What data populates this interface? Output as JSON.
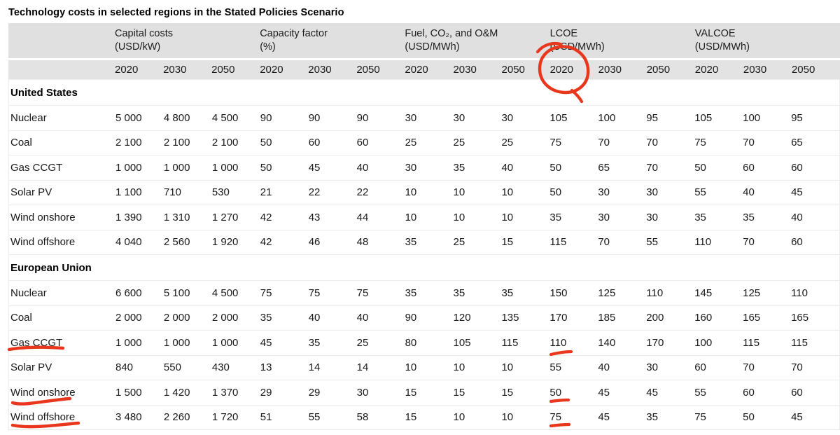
{
  "title": "Technology costs in selected regions in the Stated Policies Scenario",
  "table": {
    "column_groups": [
      {
        "label": "Capital costs",
        "unit": "(USD/kW)"
      },
      {
        "label": "Capacity factor",
        "unit": "(%)"
      },
      {
        "label": "Fuel, CO₂, and O&M",
        "unit": "(USD/MWh)"
      },
      {
        "label": "LCOE",
        "unit": "(USD/MWh)"
      },
      {
        "label": "VALCOE",
        "unit": "(USD/MWh)"
      }
    ],
    "years": [
      "2020",
      "2030",
      "2050"
    ],
    "sections": [
      {
        "region": "United States",
        "rows": [
          {
            "tech": "Nuclear",
            "values": [
              "5 000",
              "4 800",
              "4 500",
              "90",
              "90",
              "90",
              "30",
              "30",
              "30",
              "105",
              "100",
              "95",
              "105",
              "100",
              "95"
            ]
          },
          {
            "tech": "Coal",
            "values": [
              "2 100",
              "2 100",
              "2 100",
              "50",
              "60",
              "60",
              "25",
              "25",
              "25",
              "75",
              "70",
              "70",
              "75",
              "70",
              "65"
            ]
          },
          {
            "tech": "Gas CCGT",
            "values": [
              "1 000",
              "1 000",
              "1 000",
              "50",
              "45",
              "40",
              "30",
              "35",
              "40",
              "50",
              "65",
              "70",
              "50",
              "60",
              "60"
            ]
          },
          {
            "tech": "Solar PV",
            "values": [
              "1 100",
              "710",
              "530",
              "21",
              "22",
              "22",
              "10",
              "10",
              "10",
              "50",
              "30",
              "30",
              "55",
              "40",
              "45"
            ]
          },
          {
            "tech": "Wind onshore",
            "values": [
              "1 390",
              "1 310",
              "1 270",
              "42",
              "43",
              "44",
              "10",
              "10",
              "10",
              "35",
              "30",
              "30",
              "35",
              "35",
              "40"
            ]
          },
          {
            "tech": "Wind offshore",
            "values": [
              "4 040",
              "2 560",
              "1 920",
              "42",
              "46",
              "48",
              "35",
              "25",
              "15",
              "115",
              "70",
              "55",
              "110",
              "70",
              "60"
            ]
          }
        ]
      },
      {
        "region": "European Union",
        "rows": [
          {
            "tech": "Nuclear",
            "values": [
              "6 600",
              "5 100",
              "4 500",
              "75",
              "75",
              "75",
              "35",
              "35",
              "35",
              "150",
              "125",
              "110",
              "145",
              "125",
              "110"
            ]
          },
          {
            "tech": "Coal",
            "values": [
              "2 000",
              "2 000",
              "2 000",
              "35",
              "40",
              "40",
              "90",
              "120",
              "135",
              "170",
              "185",
              "200",
              "160",
              "165",
              "165"
            ]
          },
          {
            "tech": "Gas CCGT",
            "values": [
              "1 000",
              "1 000",
              "1 000",
              "45",
              "35",
              "25",
              "80",
              "105",
              "115",
              "110",
              "140",
              "170",
              "100",
              "115",
              "115"
            ]
          },
          {
            "tech": "Solar PV",
            "values": [
              "840",
              "550",
              "430",
              "13",
              "14",
              "14",
              "10",
              "10",
              "10",
              "55",
              "40",
              "30",
              "60",
              "70",
              "70"
            ]
          },
          {
            "tech": "Wind onshore",
            "values": [
              "1 500",
              "1 420",
              "1 370",
              "29",
              "29",
              "30",
              "15",
              "15",
              "15",
              "50",
              "45",
              "45",
              "55",
              "60",
              "60"
            ]
          },
          {
            "tech": "Wind offshore",
            "values": [
              "3 480",
              "2 260",
              "1 720",
              "51",
              "55",
              "58",
              "15",
              "10",
              "10",
              "75",
              "45",
              "35",
              "75",
              "50",
              "45"
            ]
          }
        ]
      }
    ]
  },
  "annotations": {
    "ink_color": "#e8371d",
    "circle": {
      "target": "LCOE 2020 year header"
    },
    "underlines": [
      {
        "section": "European Union",
        "row": "Gas CCGT",
        "marked_texts": [
          "Gas CCGT",
          "110"
        ]
      },
      {
        "section": "European Union",
        "row": "Wind onshore",
        "marked_texts": [
          "Wind onshore",
          "50"
        ]
      },
      {
        "section": "European Union",
        "row": "Wind offshore",
        "marked_texts": [
          "Wind offshore",
          "75"
        ]
      }
    ]
  }
}
